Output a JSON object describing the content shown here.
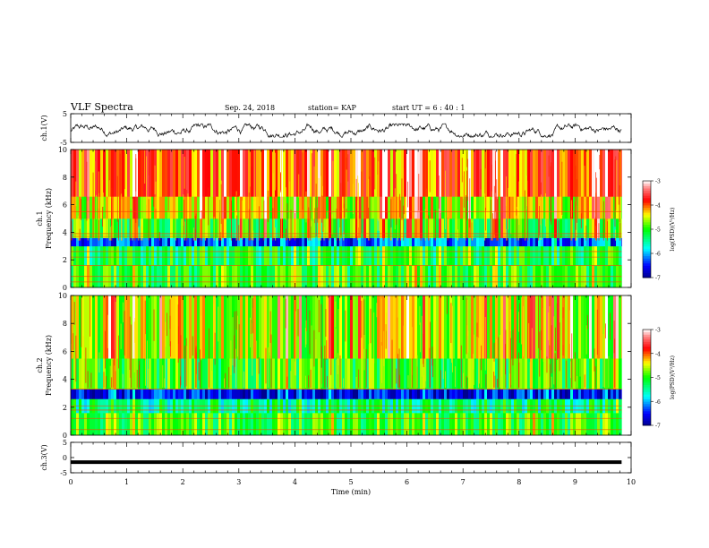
{
  "header": {
    "title": "VLF Spectra",
    "date": "Sep. 24, 2018",
    "station": "station= KAP",
    "start": "start  UT =   6  : 40 : 1"
  },
  "colors": {
    "scale": [
      "#00008f",
      "#0000ff",
      "#00ffff",
      "#00ff00",
      "#ffff00",
      "#ff0000",
      "#ff8080",
      "#ffffff"
    ],
    "line": "#000000",
    "hline": "#ff4000"
  },
  "chart_data": [
    {
      "type": "line",
      "name": "ch1-waveform",
      "ylabel": "ch.1(V)",
      "ylim": [
        -5,
        5
      ],
      "yticks": [
        "5",
        "-5"
      ],
      "xlim": [
        0,
        10
      ],
      "description_level": "fluctuating around -1 V, amplitude ~1.5 V",
      "x_end": 9.83
    },
    {
      "type": "heatmap",
      "name": "ch1-spectrogram",
      "ylabel": "ch.1\nFrequency (kHz)",
      "ylim": [
        0,
        10
      ],
      "yticks": [
        "0",
        "2",
        "4",
        "6",
        "8",
        "10"
      ],
      "xlim": [
        0,
        10
      ],
      "x_end": 9.83,
      "colorbar": {
        "label": "log(PSD)(V²/Hz)",
        "ticks": [
          "-3",
          "-4",
          "-5",
          "-6",
          "-7"
        ],
        "range": [
          -7,
          -3
        ]
      },
      "bands_khz": [
        {
          "from": 0.0,
          "to": 1.6,
          "level": -5.0
        },
        {
          "from": 1.6,
          "to": 3.0,
          "level": -5.2
        },
        {
          "from": 3.0,
          "to": 3.6,
          "level": -6.3
        },
        {
          "from": 3.6,
          "to": 5.0,
          "level": -5.0
        },
        {
          "from": 5.0,
          "to": 6.6,
          "level": -4.5
        },
        {
          "from": 6.6,
          "to": 10.0,
          "level": -4.0
        }
      ],
      "lines_khz": [
        0.4,
        0.8,
        1.6,
        2.2,
        2.6,
        3.7,
        3.9,
        5.5
      ]
    },
    {
      "type": "heatmap",
      "name": "ch2-spectrogram",
      "ylabel": "ch.2\nFrequency (kHz)",
      "ylim": [
        0,
        10
      ],
      "yticks": [
        "0",
        "2",
        "4",
        "6",
        "8",
        "10"
      ],
      "xlim": [
        0,
        10
      ],
      "x_end": 9.83,
      "colorbar": {
        "label": "log(PSD)(V²/Hz)",
        "ticks": [
          "-3",
          "-4",
          "-5",
          "-6",
          "-7"
        ],
        "range": [
          -7,
          -3
        ]
      },
      "bands_khz": [
        {
          "from": 0.0,
          "to": 1.6,
          "level": -5.0
        },
        {
          "from": 1.6,
          "to": 2.6,
          "level": -5.4
        },
        {
          "from": 2.6,
          "to": 3.3,
          "level": -6.6
        },
        {
          "from": 3.3,
          "to": 5.5,
          "level": -5.0
        },
        {
          "from": 5.5,
          "to": 10.0,
          "level": -4.6
        }
      ],
      "lines_khz": [
        0.4,
        1.2,
        1.8,
        2.1,
        3.3
      ]
    },
    {
      "type": "line",
      "name": "ch3-waveform",
      "ylabel": "ch.3(V)",
      "ylim": [
        -5,
        5
      ],
      "yticks": [
        "5",
        "0",
        "-5"
      ],
      "xlim": [
        0,
        10
      ],
      "xlabel": "Time (min)",
      "xticks": [
        "0",
        "1",
        "2",
        "3",
        "4",
        "5",
        "6",
        "7",
        "8",
        "9",
        "10"
      ],
      "level": -1.5,
      "x_end": 9.83
    }
  ]
}
